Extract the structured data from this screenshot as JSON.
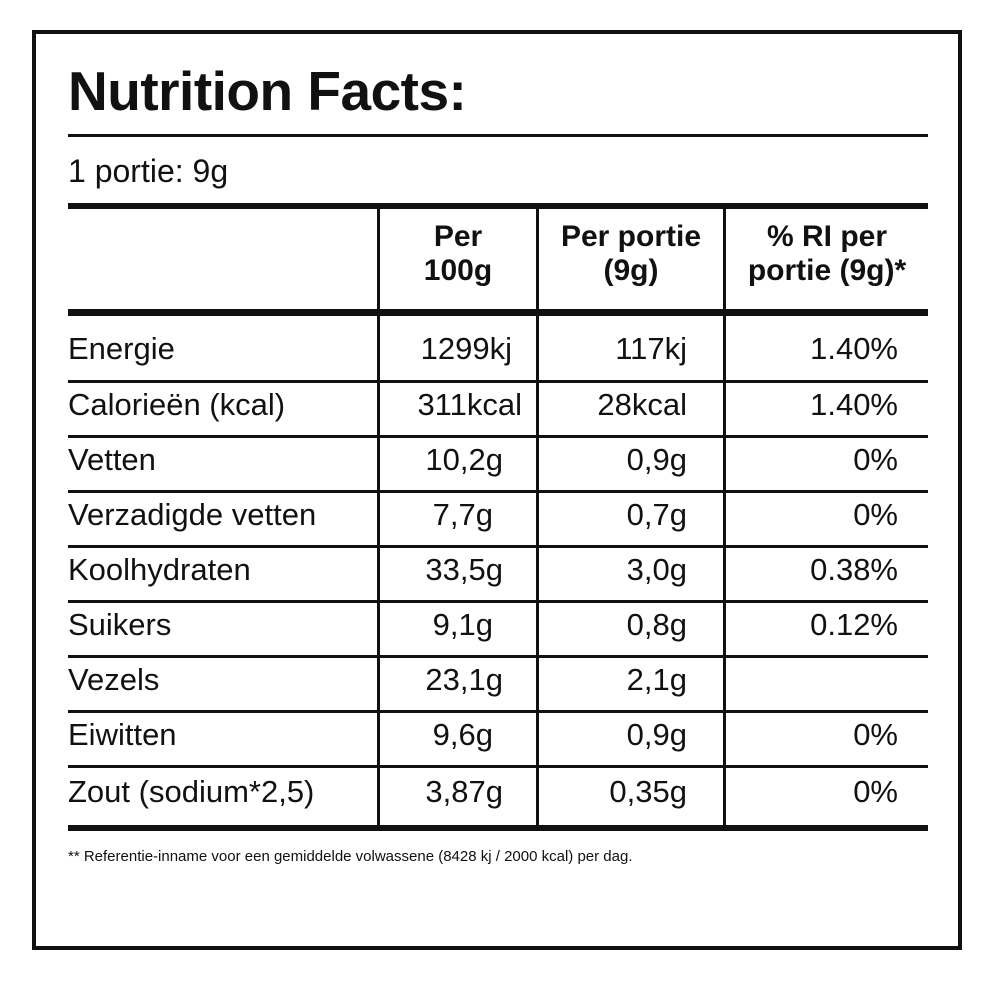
{
  "title": "Nutrition Facts:",
  "serving": "1 portie: 9g",
  "columns": {
    "per100_line1": "Per",
    "per100_line2": "100g",
    "portion_line1": "Per portie",
    "portion_line2": "(9g)",
    "ri_line1": "% RI per",
    "ri_line2": "portie (9g)*"
  },
  "rows": [
    {
      "name": "Energie",
      "per100": "1299kj",
      "portion": "117kj",
      "ri": "1.40%"
    },
    {
      "name": "Calorieën (kcal)",
      "per100": "311kcal",
      "portion": "28kcal",
      "ri": "1.40%"
    },
    {
      "name": "Vetten",
      "per100": "10,2g",
      "portion": "0,9g",
      "ri": "0%"
    },
    {
      "name": "Verzadigde vetten",
      "per100": "7,7g",
      "portion": "0,7g",
      "ri": "0%"
    },
    {
      "name": "Koolhydraten",
      "per100": "33,5g",
      "portion": "3,0g",
      "ri": "0.38%"
    },
    {
      "name": "Suikers",
      "per100": "9,1g",
      "portion": "0,8g",
      "ri": "0.12%"
    },
    {
      "name": "Vezels",
      "per100": "23,1g",
      "portion": "2,1g",
      "ri": ""
    },
    {
      "name": "Eiwitten",
      "per100": "9,6g",
      "portion": "0,9g",
      "ri": "0%"
    },
    {
      "name": "Zout (sodium*2,5)",
      "per100": "3,87g",
      "portion": "0,35g",
      "ri": "0%"
    }
  ],
  "footnote": "** Referentie-inname voor een gemiddelde volwassene (8428 kj / 2000 kcal) per dag."
}
